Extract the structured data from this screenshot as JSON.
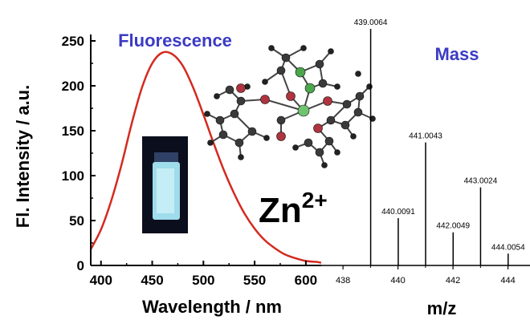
{
  "colors": {
    "fluorescence_curve": "#d42a1f",
    "title_text": "#3b3bc4",
    "axis": "#000000",
    "mass_peak": "#000000",
    "vial_glow": "#9fdcec",
    "vial_background": "#0b0e1c"
  },
  "chart_data": [
    {
      "type": "line",
      "title": "Fluorescence",
      "xlabel": "Wavelength / nm",
      "ylabel": "Fl. Intensity / a.u.",
      "xlim": [
        390,
        615
      ],
      "ylim": [
        0,
        250
      ],
      "xticks": [
        "400",
        "450",
        "500",
        "550",
        "600"
      ],
      "yticks": [
        "0",
        "50",
        "100",
        "150",
        "200",
        "250"
      ],
      "series": [
        {
          "x": [
            390,
            400,
            410,
            420,
            430,
            440,
            450,
            460,
            470,
            480,
            490,
            500,
            510,
            520,
            530,
            540,
            550,
            560,
            570,
            580,
            590,
            600,
            610,
            615
          ],
          "values": [
            18,
            40,
            72,
            112,
            158,
            198,
            225,
            237,
            235,
            222,
            198,
            168,
            136,
            106,
            80,
            58,
            41,
            28,
            19,
            12,
            8,
            5,
            4,
            3
          ]
        }
      ],
      "grid": false,
      "annotations": [
        "Zn2+"
      ]
    },
    {
      "type": "bar",
      "title": "Mass",
      "xlabel": "m/z",
      "ylabel": "",
      "xlim": [
        437.5,
        444.8
      ],
      "ylim": [
        0,
        100
      ],
      "xticks": [
        "438",
        "440",
        "442",
        "444"
      ],
      "peaks": [
        {
          "x": 439.0064,
          "value": 100,
          "label": "439.0064"
        },
        {
          "x": 440.0091,
          "value": 20,
          "label": "440.0091"
        },
        {
          "x": 441.0043,
          "value": 52,
          "label": "441.0043"
        },
        {
          "x": 442.0049,
          "value": 14,
          "label": "442.0049"
        },
        {
          "x": 443.0024,
          "value": 33,
          "label": "443.0024"
        },
        {
          "x": 444.0054,
          "value": 5,
          "label": "444.0054"
        }
      ],
      "grid": false
    }
  ],
  "ion_label": {
    "base": "Zn",
    "superscript": "2+"
  }
}
